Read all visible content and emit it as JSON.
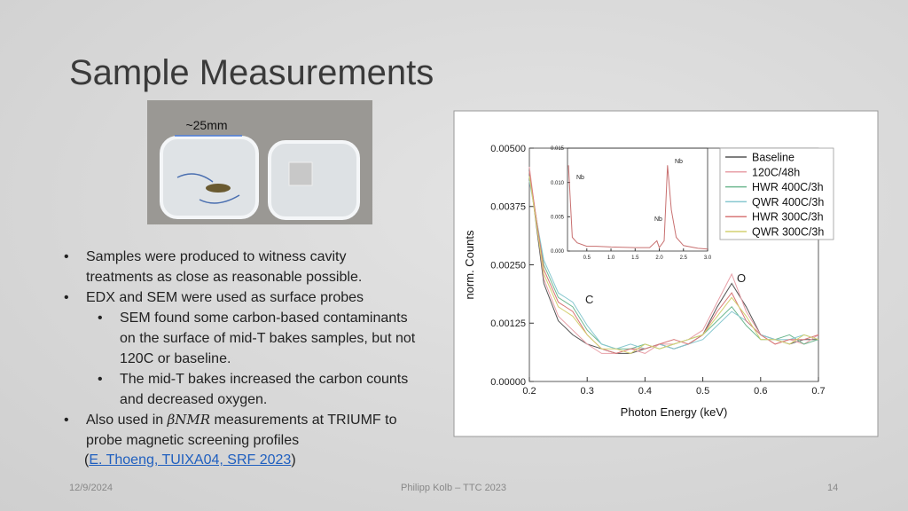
{
  "slide": {
    "title": "Sample Measurements",
    "photo_label": "~25mm",
    "bullets": [
      {
        "level": 1,
        "parts": [
          "Samples were produced to witness cavity treatments as close as reasonable possible."
        ]
      },
      {
        "level": 1,
        "parts": [
          "EDX and SEM were used as surface probes"
        ]
      },
      {
        "level": 2,
        "parts": [
          "SEM found some carbon-based contaminants on the surface of mid-T bakes samples, but not 120C or baseline."
        ]
      },
      {
        "level": 2,
        "parts": [
          "The mid-T bakes increased the carbon counts and decreased oxygen."
        ]
      },
      {
        "level": 1,
        "parts": [
          "Also used in ",
          "βNMR",
          " measurements at TRIUMF to probe magnetic screening profiles"
        ]
      }
    ],
    "citation": {
      "open": "(",
      "link": "E. Thoeng, TUIXA04, SRF 2023",
      "close": ")"
    },
    "footer": {
      "date": "12/9/2024",
      "center": "Philipp Kolb – TTC 2023",
      "page": "14"
    }
  },
  "chart_data": [
    {
      "type": "line",
      "x_label": "Photon Energy (keV)",
      "y_label": "norm. Counts",
      "x": [
        0.2,
        0.225,
        0.25,
        0.275,
        0.3,
        0.325,
        0.35,
        0.375,
        0.4,
        0.425,
        0.45,
        0.475,
        0.5,
        0.525,
        0.55,
        0.575,
        0.6,
        0.625,
        0.65,
        0.675,
        0.7
      ],
      "xlim": [
        0.2,
        0.7
      ],
      "xticks": [
        0.2,
        0.3,
        0.4,
        0.5,
        0.6,
        0.7
      ],
      "ylim": [
        0,
        0.005
      ],
      "yticks": [
        {
          "value": 0,
          "label": "0.00000"
        },
        {
          "value": 0.00125,
          "label": "0.00125"
        },
        {
          "value": 0.0025,
          "label": "0.00250"
        },
        {
          "value": 0.00375,
          "label": "0.00375"
        },
        {
          "value": 0.005,
          "label": "0.00500"
        }
      ],
      "annotations": [
        "C",
        "O"
      ],
      "legend": "upper right",
      "series": [
        {
          "name": "Baseline",
          "color": "#555555",
          "values": [
            0.0045,
            0.0021,
            0.0013,
            0.001,
            0.0008,
            0.0007,
            0.0006,
            0.0006,
            0.0007,
            0.0008,
            0.0007,
            0.0008,
            0.001,
            0.0016,
            0.0021,
            0.0016,
            0.001,
            0.0009,
            0.0008,
            0.0009,
            0.0009
          ]
        },
        {
          "name": "120C/48h",
          "color": "#e8a0a8",
          "values": [
            0.0046,
            0.0022,
            0.0014,
            0.0011,
            0.0008,
            0.0006,
            0.0006,
            0.0007,
            0.0006,
            0.0008,
            0.0008,
            0.0009,
            0.0011,
            0.0017,
            0.0023,
            0.0015,
            0.001,
            0.0008,
            0.0009,
            0.0008,
            0.001
          ]
        },
        {
          "name": "HWR 400C/3h",
          "color": "#6fb890",
          "values": [
            0.0044,
            0.0025,
            0.0018,
            0.0016,
            0.0011,
            0.0008,
            0.0007,
            0.0007,
            0.0008,
            0.0007,
            0.0008,
            0.0009,
            0.001,
            0.0013,
            0.0016,
            0.0012,
            0.0009,
            0.0009,
            0.001,
            0.0008,
            0.0009
          ]
        },
        {
          "name": "QWR 400C/3h",
          "color": "#88c8d0",
          "values": [
            0.0043,
            0.0026,
            0.0019,
            0.0017,
            0.0012,
            0.0008,
            0.0007,
            0.0008,
            0.0007,
            0.0008,
            0.0007,
            0.0008,
            0.0009,
            0.0012,
            0.0015,
            0.0013,
            0.001,
            0.0009,
            0.0009,
            0.001,
            0.0009
          ]
        },
        {
          "name": "HWR 300C/3h",
          "color": "#d87878",
          "values": [
            0.0045,
            0.0024,
            0.0017,
            0.0015,
            0.001,
            0.0007,
            0.0006,
            0.0007,
            0.0007,
            0.0008,
            0.0009,
            0.0008,
            0.001,
            0.0015,
            0.0019,
            0.0013,
            0.001,
            0.0008,
            0.0009,
            0.0009,
            0.001
          ]
        },
        {
          "name": "QWR 300C/3h",
          "color": "#d4d070",
          "values": [
            0.0044,
            0.0023,
            0.0016,
            0.0014,
            0.001,
            0.0007,
            0.0007,
            0.0006,
            0.0008,
            0.0007,
            0.0008,
            0.0009,
            0.001,
            0.0014,
            0.0018,
            0.0014,
            0.0009,
            0.0009,
            0.0008,
            0.001,
            0.0009
          ]
        }
      ]
    },
    {
      "type": "line",
      "x": [
        0.12,
        0.2,
        0.3,
        0.5,
        0.7,
        1.0,
        1.5,
        1.8,
        1.95,
        2.0,
        2.1,
        2.17,
        2.25,
        2.35,
        2.5,
        2.8,
        3.0
      ],
      "xlim": [
        0.1,
        3.0
      ],
      "xticks": [
        0.5,
        {
          "value": 1.0,
          "label": "1.0"
        },
        1.5,
        {
          "value": 2.0,
          "label": "2.0"
        },
        2.5,
        {
          "value": 3.0,
          "label": "3.0"
        }
      ],
      "ylim": [
        0,
        0.015
      ],
      "yticks": [
        {
          "value": 0,
          "label": "0.000"
        },
        {
          "value": 0.005,
          "label": "0.005"
        },
        {
          "value": 0.01,
          "label": "0.010"
        },
        {
          "value": 0.015,
          "label": "0.015"
        }
      ],
      "annotations": [
        "Nb",
        "Nb",
        "Nb"
      ],
      "series": [
        {
          "color": "#c87070",
          "values": [
            0.0125,
            0.002,
            0.0012,
            0.0007,
            0.0007,
            0.0006,
            0.0005,
            0.0005,
            0.0015,
            0.0005,
            0.0015,
            0.0125,
            0.006,
            0.002,
            0.0008,
            0.0004,
            0.0003
          ]
        }
      ]
    }
  ]
}
